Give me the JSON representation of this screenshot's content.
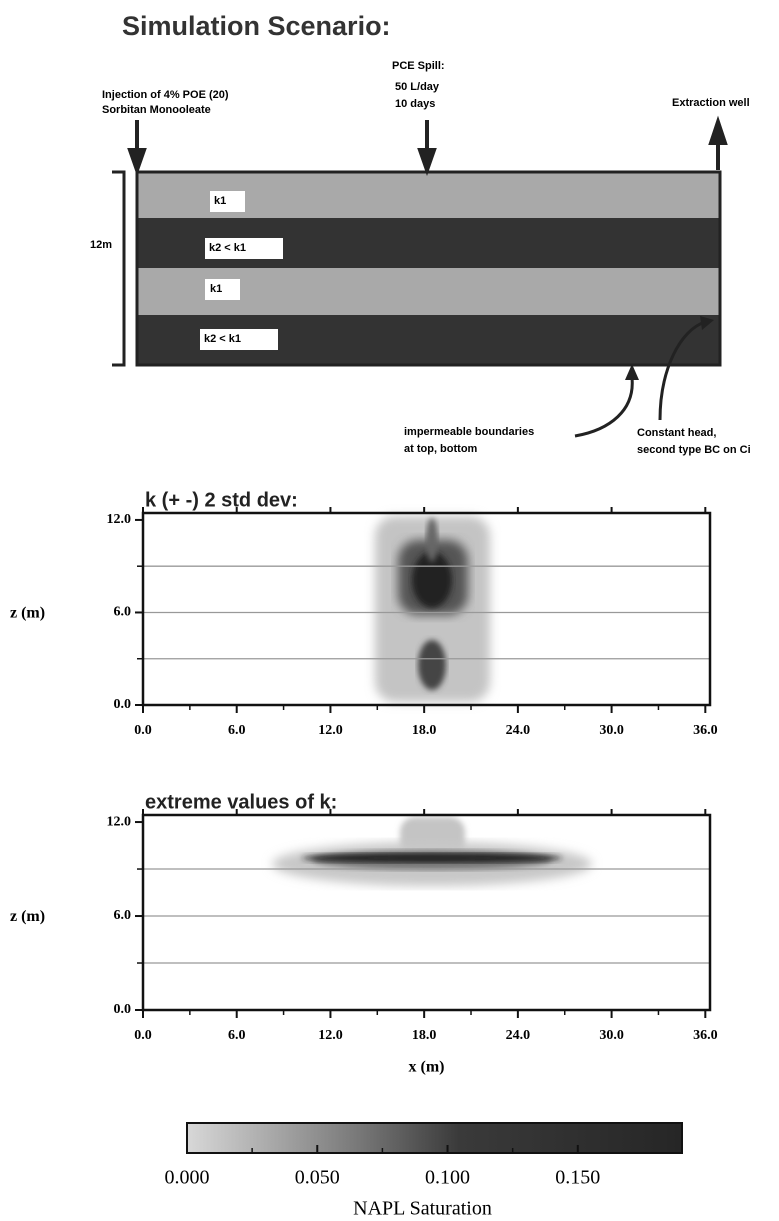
{
  "scenario": {
    "title": "Simulation Scenario:",
    "injection": [
      "Injection of 4% POE (20)",
      "Sorbitan Monooleate"
    ],
    "spill": [
      "PCE Spill:",
      "50 L/day",
      "10 days"
    ],
    "extraction": "Extraction well",
    "depth": "12m",
    "layers": [
      "k1",
      "k2 < k1",
      "k1",
      "k2 < k1"
    ],
    "boundary_note": [
      "impermeable boundaries",
      "at top, bottom"
    ],
    "head_note": [
      "Constant head,",
      "second type BC on Ci"
    ]
  },
  "chart_data": [
    {
      "type": "heatmap",
      "title": "k (+ -) 2 std dev:",
      "ylabel": "z (m)",
      "xlim": [
        0,
        36.3
      ],
      "ylim": [
        0,
        12.45
      ],
      "xticks": [
        {
          "value": 0,
          "label": "0.0"
        },
        {
          "value": 6,
          "label": "6.0"
        },
        {
          "value": 12,
          "label": "12.0"
        },
        {
          "value": 18,
          "label": "18.0"
        },
        {
          "value": 24,
          "label": "24.0"
        },
        {
          "value": 30,
          "label": "30.0"
        },
        {
          "value": 36,
          "label": "36.0"
        }
      ],
      "yticks": [
        {
          "value": 0,
          "label": "0.0"
        },
        {
          "value": 6,
          "label": "6.0"
        },
        {
          "value": 12,
          "label": "12.0"
        }
      ],
      "layer_boundaries": [
        3,
        6,
        9
      ]
    },
    {
      "type": "heatmap",
      "title": "extreme values of k:",
      "ylabel": "z (m)",
      "xlabel": "x (m)",
      "xlim": [
        0,
        36.3
      ],
      "ylim": [
        0,
        12.45
      ],
      "xticks": [
        {
          "value": 0,
          "label": "0.0"
        },
        {
          "value": 6,
          "label": "6.0"
        },
        {
          "value": 12,
          "label": "12.0"
        },
        {
          "value": 18,
          "label": "18.0"
        },
        {
          "value": 24,
          "label": "24.0"
        },
        {
          "value": 30,
          "label": "30.0"
        },
        {
          "value": 36,
          "label": "36.0"
        }
      ],
      "yticks": [
        {
          "value": 0,
          "label": "0.0"
        },
        {
          "value": 6,
          "label": "6.0"
        },
        {
          "value": 12,
          "label": "12.0"
        }
      ],
      "layer_boundaries": [
        3,
        6,
        9
      ]
    }
  ],
  "colorbar": {
    "label": "NAPL Saturation",
    "lim": [
      0,
      0.19
    ],
    "ticks": [
      {
        "value": 0,
        "label": "0.000"
      },
      {
        "value": 0.05,
        "label": "0.050"
      },
      {
        "value": 0.1,
        "label": "0.100"
      },
      {
        "value": 0.15,
        "label": "0.150"
      }
    ]
  }
}
